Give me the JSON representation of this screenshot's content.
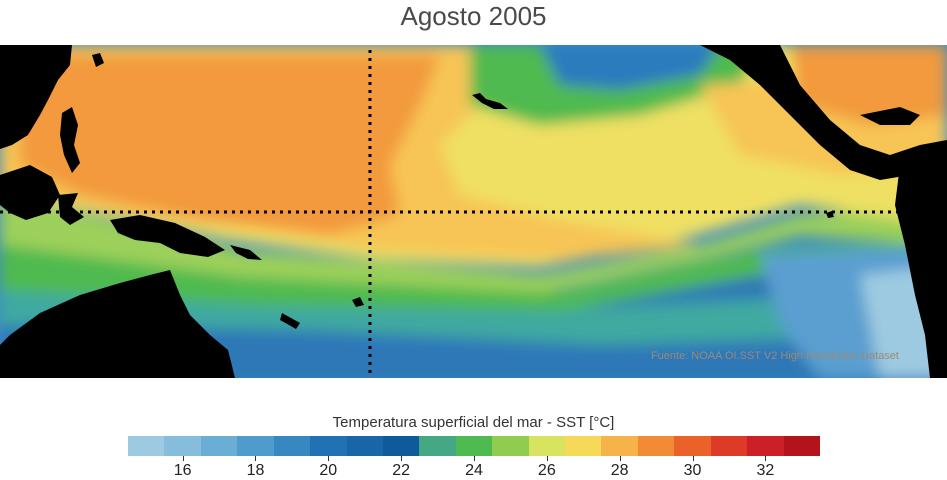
{
  "title": "Agosto 2005",
  "source_note": "Fuente: NOAA OI.SST V2 High Resolution Dataset",
  "colorbar": {
    "label": "Temperatura superficial del mar - SST  [°C]",
    "min": 15,
    "max": 33,
    "step": 1,
    "tick_values": [
      16,
      18,
      20,
      22,
      24,
      26,
      28,
      30,
      32
    ],
    "tick_labels": [
      "16",
      "18",
      "20",
      "22",
      "24",
      "26",
      "28",
      "30",
      "32"
    ],
    "colors": [
      "#9ecae1",
      "#86bddd",
      "#6aaed6",
      "#4f9bcc",
      "#3787c0",
      "#2171b5",
      "#1866a8",
      "#0e5a9a",
      "#45a884",
      "#4fba50",
      "#8fcc50",
      "#d8e460",
      "#f7d95a",
      "#f6b34a",
      "#f28b36",
      "#ea622a",
      "#dd3a27",
      "#cc1f26",
      "#b5131c"
    ]
  },
  "map": {
    "region": "Tropical Pacific",
    "land_color": "#000000",
    "reference_lines": [
      "equator",
      "dateline"
    ]
  }
}
